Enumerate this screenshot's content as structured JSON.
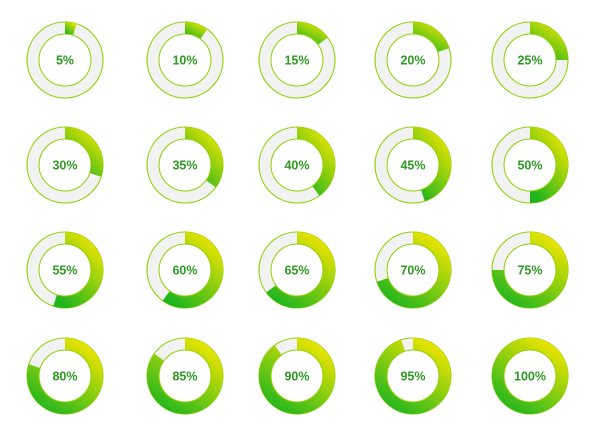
{
  "colors": {
    "gradient_start": "#f3e600",
    "gradient_end": "#1fb51f",
    "track_fill": "#f2f2f2",
    "outline": "#8fd000",
    "label": "#2e9a22"
  },
  "chart_data": {
    "type": "donut-grid",
    "title": "",
    "charts": [
      {
        "value": 5,
        "label": "5%"
      },
      {
        "value": 10,
        "label": "10%"
      },
      {
        "value": 15,
        "label": "15%"
      },
      {
        "value": 20,
        "label": "20%"
      },
      {
        "value": 25,
        "label": "25%"
      },
      {
        "value": 30,
        "label": "30%"
      },
      {
        "value": 35,
        "label": "35%"
      },
      {
        "value": 40,
        "label": "40%"
      },
      {
        "value": 45,
        "label": "45%"
      },
      {
        "value": 50,
        "label": "50%"
      },
      {
        "value": 55,
        "label": "55%"
      },
      {
        "value": 60,
        "label": "60%"
      },
      {
        "value": 65,
        "label": "65%"
      },
      {
        "value": 70,
        "label": "70%"
      },
      {
        "value": 75,
        "label": "75%"
      },
      {
        "value": 80,
        "label": "80%"
      },
      {
        "value": 85,
        "label": "85%"
      },
      {
        "value": 90,
        "label": "90%"
      },
      {
        "value": 95,
        "label": "95%"
      },
      {
        "value": 100,
        "label": "100%"
      }
    ]
  }
}
